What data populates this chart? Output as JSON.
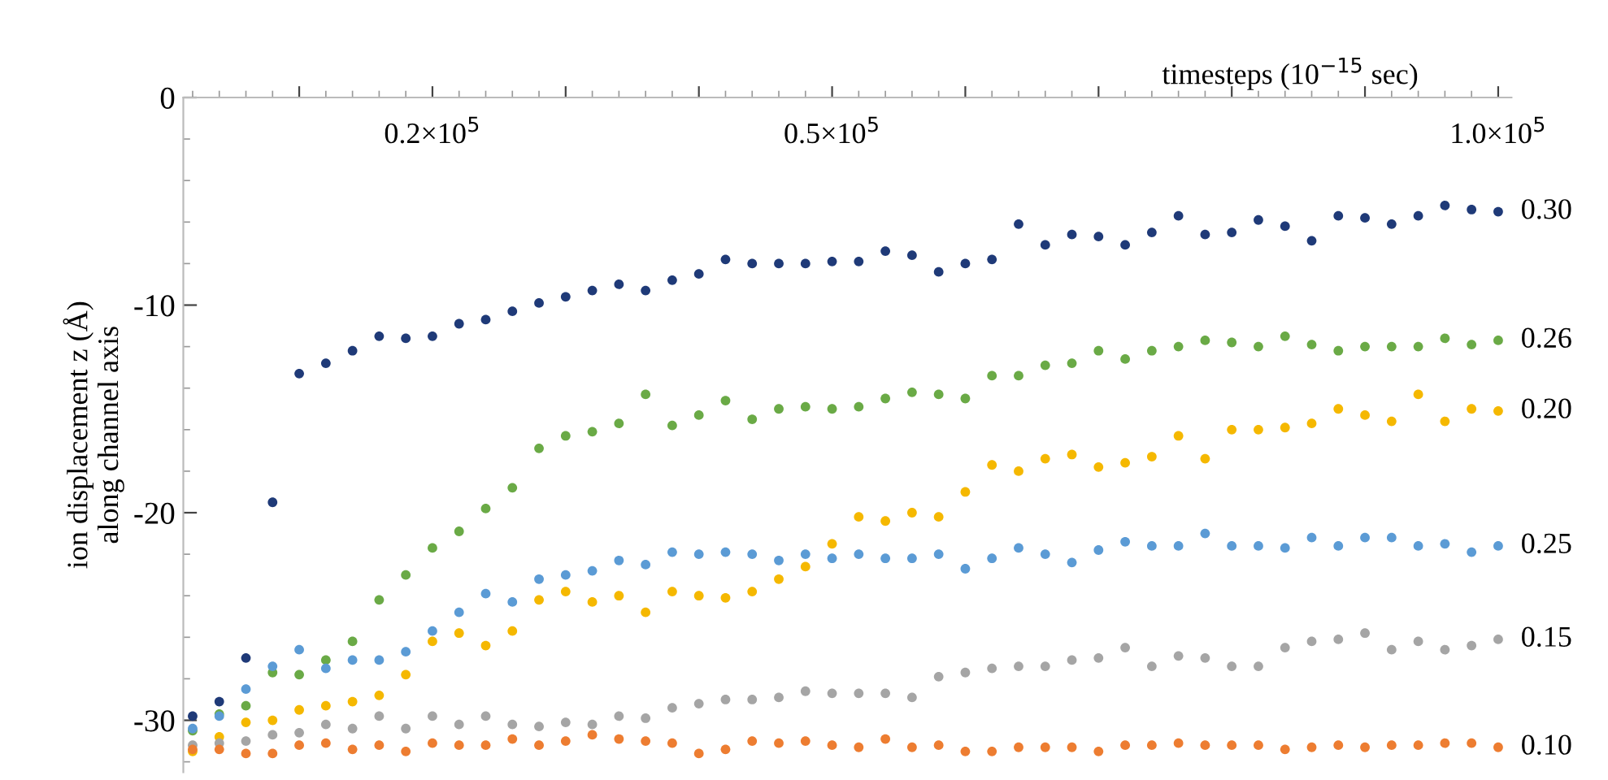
{
  "chart_data": {
    "type": "scatter",
    "xlabel": "timesteps (10$^{−15}$ sec)",
    "ylabel": "ion displacement z (Å)\nalong channel axis",
    "x": [
      2000,
      4000,
      6000,
      8000,
      10000,
      12000,
      14000,
      16000,
      18000,
      20000,
      22000,
      24000,
      26000,
      28000,
      30000,
      32000,
      34000,
      36000,
      38000,
      40000,
      42000,
      44000,
      46000,
      48000,
      50000,
      52000,
      54000,
      56000,
      58000,
      60000,
      62000,
      64000,
      66000,
      68000,
      70000,
      72000,
      74000,
      76000,
      78000,
      80000,
      82000,
      84000,
      86000,
      88000,
      90000,
      92000,
      94000,
      96000,
      98000,
      100000
    ],
    "series": [
      {
        "name": "0.30",
        "color": "#1f3a78",
        "values": [
          -29.8,
          -29.1,
          -27.0,
          -19.5,
          -13.3,
          -12.8,
          -12.2,
          -11.5,
          -11.6,
          -11.5,
          -10.9,
          -10.7,
          -10.3,
          -9.9,
          -9.6,
          -9.3,
          -9.0,
          -9.3,
          -8.8,
          -8.5,
          -7.8,
          -8.0,
          -8.0,
          -8.0,
          -7.9,
          -7.9,
          -7.4,
          -7.6,
          -8.4,
          -8.0,
          -7.8,
          -6.1,
          -7.1,
          -6.6,
          -6.7,
          -7.1,
          -6.5,
          -5.7,
          -6.6,
          -6.5,
          -5.9,
          -6.2,
          -6.9,
          -5.7,
          -5.8,
          -6.1,
          -5.7,
          -5.2,
          -5.4,
          -5.5
        ]
      },
      {
        "name": "0.26",
        "color": "#6aaa46",
        "values": [
          -30.5,
          -29.7,
          -29.3,
          -27.7,
          -27.8,
          -27.1,
          -26.2,
          -24.2,
          -23.0,
          -21.7,
          -20.9,
          -19.8,
          -18.8,
          -16.9,
          -16.3,
          -16.1,
          -15.7,
          -14.3,
          -15.8,
          -15.3,
          -14.6,
          -15.5,
          -15.0,
          -14.9,
          -15.0,
          -14.9,
          -14.5,
          -14.2,
          -14.3,
          -14.5,
          -13.4,
          -13.4,
          -12.9,
          -12.8,
          -12.2,
          -12.6,
          -12.2,
          -12.0,
          -11.7,
          -11.8,
          -12.0,
          -11.5,
          -11.9,
          -12.2,
          -12.0,
          -12.0,
          -12.0,
          -11.6,
          -11.9,
          -11.7
        ]
      },
      {
        "name": "0.20",
        "color": "#f5b800",
        "values": [
          -31.5,
          -30.8,
          -30.1,
          -30.0,
          -29.5,
          -29.3,
          -29.1,
          -28.8,
          -27.8,
          -26.2,
          -25.8,
          -26.4,
          -25.7,
          -24.2,
          -23.8,
          -24.3,
          -24.0,
          -24.8,
          -23.8,
          -24.0,
          -24.1,
          -23.8,
          -23.2,
          -22.6,
          -21.5,
          -20.2,
          -20.4,
          -20.0,
          -20.2,
          -19.0,
          -17.7,
          -18.0,
          -17.4,
          -17.2,
          -17.8,
          -17.6,
          -17.3,
          -16.3,
          -17.4,
          -16.0,
          -16.0,
          -15.9,
          -15.7,
          -15.0,
          -15.3,
          -15.6,
          -14.3,
          -15.6,
          -15.0,
          -15.1
        ]
      },
      {
        "name": "0.25",
        "color": "#5b9bd5",
        "values": [
          -30.4,
          -29.8,
          -28.5,
          -27.4,
          -26.6,
          -27.5,
          -27.1,
          -27.1,
          -26.7,
          -25.7,
          -24.8,
          -23.9,
          -24.3,
          -23.2,
          -23.0,
          -22.8,
          -22.3,
          -22.5,
          -21.9,
          -22.0,
          -21.9,
          -22.0,
          -22.3,
          -22.0,
          -22.2,
          -22.0,
          -22.2,
          -22.2,
          -22.0,
          -22.7,
          -22.2,
          -21.7,
          -22.0,
          -22.4,
          -21.8,
          -21.4,
          -21.6,
          -21.6,
          -21.0,
          -21.6,
          -21.6,
          -21.7,
          -21.2,
          -21.6,
          -21.2,
          -21.2,
          -21.6,
          -21.5,
          -21.9,
          -21.6
        ]
      },
      {
        "name": "0.15",
        "color": "#a5a5a5",
        "values": [
          -31.2,
          -31.1,
          -31.0,
          -30.7,
          -30.6,
          -30.2,
          -30.4,
          -29.8,
          -30.4,
          -29.8,
          -30.2,
          -29.8,
          -30.2,
          -30.3,
          -30.1,
          -30.2,
          -29.8,
          -29.9,
          -29.4,
          -29.2,
          -29.0,
          -29.0,
          -28.9,
          -28.6,
          -28.7,
          -28.7,
          -28.7,
          -28.9,
          -27.9,
          -27.7,
          -27.5,
          -27.4,
          -27.4,
          -27.1,
          -27.0,
          -26.5,
          -27.4,
          -26.9,
          -27.0,
          -27.4,
          -27.4,
          -26.5,
          -26.2,
          -26.1,
          -25.8,
          -26.6,
          -26.2,
          -26.6,
          -26.4,
          -26.1
        ]
      },
      {
        "name": "0.10",
        "color": "#ed7d31",
        "values": [
          -31.4,
          -31.4,
          -31.6,
          -31.6,
          -31.2,
          -31.1,
          -31.4,
          -31.2,
          -31.5,
          -31.1,
          -31.2,
          -31.2,
          -30.9,
          -31.2,
          -31.0,
          -30.7,
          -30.9,
          -31.0,
          -31.1,
          -31.6,
          -31.4,
          -31.0,
          -31.1,
          -31.0,
          -31.2,
          -31.3,
          -30.9,
          -31.3,
          -31.2,
          -31.5,
          -31.5,
          -31.3,
          -31.3,
          -31.3,
          -31.5,
          -31.2,
          -31.2,
          -31.1,
          -31.2,
          -31.2,
          -31.2,
          -31.4,
          -31.3,
          -31.2,
          -31.3,
          -31.2,
          -31.2,
          -31.1,
          -31.1,
          -31.3
        ]
      }
    ],
    "xlim": [
      1300,
      101000
    ],
    "xticks": [
      {
        "value": 10000,
        "label": null
      },
      {
        "value": 20000,
        "label": "0.2×10$^{5}$"
      },
      {
        "value": 30000,
        "label": null
      },
      {
        "value": 40000,
        "label": null
      },
      {
        "value": 50000,
        "label": "0.5×10$^{5}$"
      },
      {
        "value": 60000,
        "label": null
      },
      {
        "value": 70000,
        "label": null
      },
      {
        "value": 80000,
        "label": null
      },
      {
        "value": 90000,
        "label": null
      },
      {
        "value": 100000,
        "label": "1.0×10$^{5}$"
      }
    ],
    "ylim": [
      -32.5,
      0
    ],
    "yticks": [
      {
        "value": 0,
        "label": "0"
      },
      {
        "value": -10,
        "label": "-10"
      },
      {
        "value": -20,
        "label": "-20"
      },
      {
        "value": -30,
        "label": "-30"
      }
    ],
    "marker": "circle",
    "grid": false,
    "legend": false
  }
}
